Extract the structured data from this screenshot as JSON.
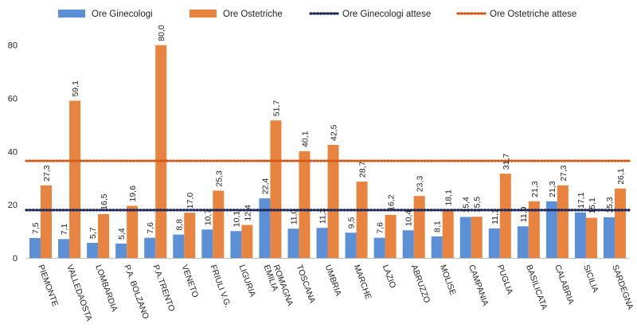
{
  "chart_data": {
    "type": "bar",
    "categories": [
      "PIEMONTE",
      "VALLEDAOSTA",
      "LOMBARDIA",
      "P.A. BOLZANO",
      "P.A.TRENTO",
      "VENETO",
      "FRIULI V.G.",
      "LIGURIA",
      "EMILIA ROMAGNA",
      "TOSCANA",
      "UMBRIA",
      "MARCHE",
      "LAZIO",
      "ABRUZZO",
      "MOLISE",
      "CAMPANIA",
      "PUGLIA",
      "BASILICATA",
      "CALABRIA",
      "SICILIA",
      "SARDEGNA"
    ],
    "series": [
      {
        "name": "Ore Ginecologi",
        "color": "#5b8fd6",
        "values": [
          7.5,
          7.1,
          5.7,
          5.4,
          7.6,
          8.8,
          10.7,
          10.1,
          22.4,
          11.0,
          11.3,
          9.5,
          7.6,
          10.4,
          8.1,
          15.4,
          11.1,
          11.9,
          21.3,
          17.1,
          15.3
        ],
        "labels": [
          "7,5",
          "7,1",
          "5,7",
          "5,4",
          "7,6",
          "8,8",
          "10,7",
          "10,1",
          "22,4",
          "11,0",
          "11,3",
          "9,5",
          "7,6",
          "10,4",
          "8,1",
          "15,4",
          "11,1",
          "11,9",
          "21,3",
          "17,1",
          "15,3"
        ]
      },
      {
        "name": "Ore Ostetriche",
        "color": "#e8843f",
        "values": [
          27.3,
          59.1,
          16.5,
          19.6,
          80.0,
          17.0,
          25.3,
          12.4,
          51.7,
          40.1,
          42.5,
          28.7,
          16.2,
          23.3,
          18.1,
          15.5,
          31.7,
          21.3,
          27.3,
          15.1,
          26.1
        ],
        "labels": [
          "27,3",
          "59,1",
          "16,5",
          "19,6",
          "80,0",
          "17,0",
          "25,3",
          "12,4",
          "51,7",
          "40,1",
          "42,5",
          "28,7",
          "16,2",
          "23,3",
          "18,1",
          "15,5",
          "31,7",
          "21,3",
          "27,3",
          "15,1",
          "26,1"
        ]
      }
    ],
    "reference_lines": [
      {
        "name": "Ore Ginecologi attese",
        "value": 18,
        "color": "#1f2a5a",
        "style": "dotted"
      },
      {
        "name": "Ore Ostetriche attese",
        "value": 36.5,
        "color": "#d45a1a",
        "style": "dotted"
      }
    ],
    "ylim": [
      0,
      85
    ],
    "yticks": [
      0,
      20,
      40,
      60,
      80
    ],
    "xlabel": "",
    "ylabel": "",
    "title": "",
    "grid": false,
    "legend_position": "top"
  }
}
